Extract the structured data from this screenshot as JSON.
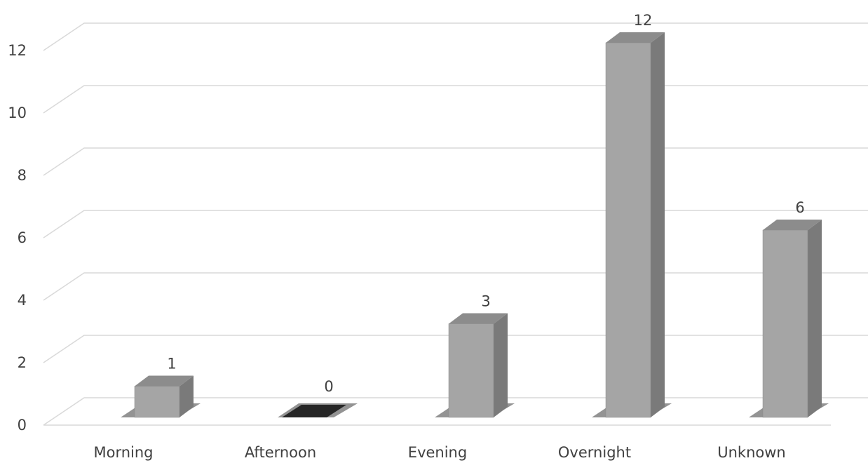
{
  "chart_data": {
    "type": "bar",
    "style": "3d-column",
    "categories": [
      "Morning",
      "Afternoon",
      "Evening",
      "Overnight",
      "Unknown"
    ],
    "values": [
      1,
      0,
      3,
      12,
      6
    ],
    "data_labels": [
      "1",
      "0",
      "3",
      "12",
      "6"
    ],
    "ylim": [
      0,
      12
    ],
    "yticks": [
      0,
      2,
      4,
      6,
      8,
      10,
      12
    ],
    "ytick_labels": [
      "0",
      "2",
      "4",
      "6",
      "8",
      "10",
      "12"
    ],
    "grid": true,
    "legend": "none",
    "colors": {
      "bar_front": "#a5a5a5",
      "bar_side": "#7a7a7a",
      "bar_top": "#8c8c8c",
      "zero_bar": "#262626",
      "shadow": "#3a3a3a",
      "grid": "#d9d9d9",
      "text": "#404040"
    }
  }
}
